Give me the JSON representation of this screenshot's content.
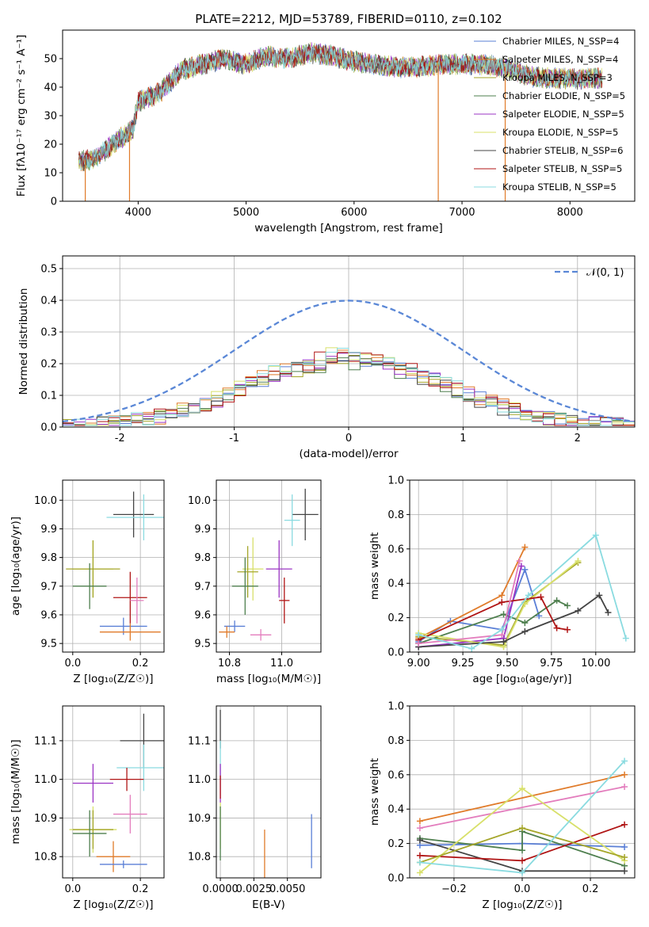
{
  "chart_data": [
    {
      "id": "spectrum",
      "type": "line",
      "title": "PLATE=2212, MJD=53789, FIBERID=0110, z=0.102",
      "xlabel": "wavelength [Angstrom, rest frame]",
      "ylabel": "Flux [fλ10⁻¹⁷ erg cm⁻² s⁻¹ A⁻¹]",
      "xlim": [
        3300,
        8600
      ],
      "ylim": [
        0,
        60
      ],
      "xticks": [
        4000,
        5000,
        6000,
        7000,
        8000
      ],
      "yticks": [
        0,
        10,
        20,
        30,
        40,
        50
      ],
      "legend_position": "top-right",
      "legend": [
        {
          "label": "Chabrier MILES, N_SSP=4",
          "color": "#5a7fd6"
        },
        {
          "label": "Salpeter MILES, N_SSP=4",
          "color": "#e07b2a"
        },
        {
          "label": "Kroupa MILES, N_SSP=3",
          "color": "#a5a62a"
        },
        {
          "label": "Chabrier ELODIE, N_SSP=5",
          "color": "#4e7f4e"
        },
        {
          "label": "Salpeter ELODIE, N_SSP=5",
          "color": "#9b34c4"
        },
        {
          "label": "Kroupa ELODIE, N_SSP=5",
          "color": "#d8e06a"
        },
        {
          "label": "Chabrier STELIB, N_SSP=6",
          "color": "#444444"
        },
        {
          "label": "Salpeter STELIB, N_SSP=5",
          "color": "#b01515"
        },
        {
          "label": "Kroupa STELIB, N_SSP=5",
          "color": "#8adbe0"
        }
      ],
      "series": [
        {
          "x": [
            3450,
            3600,
            3800,
            3950,
            4000,
            4200,
            4400,
            4600,
            4800,
            5000,
            5200,
            5400,
            5600,
            5800,
            6000,
            6200,
            6400,
            6600,
            6800,
            7000,
            7200,
            7400,
            7600,
            7800,
            8000,
            8200,
            8300
          ],
          "values": [
            14,
            15,
            21,
            25,
            35,
            38,
            46,
            48,
            50,
            48,
            51,
            50,
            52,
            51,
            49,
            48,
            47,
            47,
            48,
            48,
            48,
            47,
            44,
            43,
            43,
            43,
            43
          ]
        }
      ],
      "drop_lines_x": [
        3510,
        3920,
        6780,
        7400
      ]
    },
    {
      "id": "residuals",
      "type": "area",
      "xlabel": "(data-model)/error",
      "ylabel": "Normed distribution",
      "xlim": [
        -2.5,
        2.5
      ],
      "ylim": [
        0,
        0.54
      ],
      "xticks": [
        -2,
        -1,
        0,
        1,
        2
      ],
      "yticks": [
        0.0,
        0.1,
        0.2,
        0.3,
        0.4,
        0.5
      ],
      "legend_position": "top-right",
      "legend": [
        {
          "label": "𝒩(0, 1)",
          "color": "#5a87d6"
        }
      ],
      "bin_width": 0.1,
      "hist_colors": [
        "#5a7fd6",
        "#e07b2a",
        "#a5a62a",
        "#4e7f4e",
        "#9b34c4",
        "#d8e06a",
        "#444444",
        "#b01515",
        "#8adbe0"
      ],
      "amplitudes": [
        1.02,
        1.05,
        0.98,
        0.95,
        1.0,
        1.07,
        0.97,
        1.03,
        1.06
      ]
    },
    {
      "id": "age_vs_Z",
      "type": "scatter",
      "xlabel": "Z [log₁₀(Z/Z☉)]",
      "ylabel": "age  [log₁₀(age/yr)]",
      "xlim": [
        -0.03,
        0.27
      ],
      "ylim": [
        9.47,
        10.07
      ],
      "xticks": [
        "0.0",
        "0.2"
      ],
      "yticks": [
        "9.5",
        "9.6",
        "9.7",
        "9.8",
        "9.9",
        "10.0"
      ],
      "points": [
        {
          "x": 0.18,
          "y": 9.95,
          "xerr": 0.06,
          "yerr": 0.08,
          "color": "#444444"
        },
        {
          "x": 0.21,
          "y": 9.94,
          "xerr": 0.11,
          "yerr": 0.08,
          "color": "#8adbe0"
        },
        {
          "x": 0.06,
          "y": 9.76,
          "xerr": 0.06,
          "yerr": 0.1,
          "color": "#d8e06a"
        },
        {
          "x": 0.06,
          "y": 9.76,
          "xerr": 0.08,
          "yerr": 0.1,
          "color": "#a5a62a"
        },
        {
          "x": 0.05,
          "y": 9.7,
          "xerr": 0.05,
          "yerr": 0.08,
          "color": "#4e7f4e"
        },
        {
          "x": 0.17,
          "y": 9.66,
          "xerr": 0.05,
          "yerr": 0.09,
          "color": "#b01515"
        },
        {
          "x": 0.19,
          "y": 9.65,
          "xerr": 0.02,
          "yerr": 0.08,
          "color": "#e37dbd"
        },
        {
          "x": 0.15,
          "y": 9.56,
          "xerr": 0.07,
          "yerr": 0.03,
          "color": "#5a7fd6"
        },
        {
          "x": 0.17,
          "y": 9.54,
          "xerr": 0.09,
          "yerr": 0.03,
          "color": "#e07b2a"
        }
      ]
    },
    {
      "id": "age_vs_mass",
      "type": "scatter",
      "xlabel": "mass [log₁₀(M/M☉)]",
      "ylabel": "",
      "xlim": [
        10.75,
        11.15
      ],
      "ylim": [
        9.47,
        10.07
      ],
      "xticks": [
        "10.8",
        "11.0"
      ],
      "yticks": [
        "9.5",
        "9.6",
        "9.7",
        "9.8",
        "9.9",
        "10.0"
      ],
      "points": [
        {
          "x": 11.09,
          "y": 9.95,
          "xerr": 0.05,
          "yerr": 0.09,
          "color": "#444444"
        },
        {
          "x": 11.04,
          "y": 9.93,
          "xerr": 0.03,
          "yerr": 0.09,
          "color": "#8adbe0"
        },
        {
          "x": 10.89,
          "y": 9.76,
          "xerr": 0.04,
          "yerr": 0.11,
          "color": "#d8e06a"
        },
        {
          "x": 10.87,
          "y": 9.75,
          "xerr": 0.04,
          "yerr": 0.09,
          "color": "#a5a62a"
        },
        {
          "x": 10.86,
          "y": 9.7,
          "xerr": 0.05,
          "yerr": 0.1,
          "color": "#4e7f4e"
        },
        {
          "x": 10.99,
          "y": 9.76,
          "xerr": 0.05,
          "yerr": 0.1,
          "color": "#9b34c4"
        },
        {
          "x": 11.01,
          "y": 9.65,
          "xerr": 0.02,
          "yerr": 0.08,
          "color": "#b01515"
        },
        {
          "x": 10.92,
          "y": 9.53,
          "xerr": 0.04,
          "yerr": 0.02,
          "color": "#e37dbd"
        },
        {
          "x": 10.82,
          "y": 9.56,
          "xerr": 0.04,
          "yerr": 0.02,
          "color": "#5a7fd6"
        },
        {
          "x": 10.79,
          "y": 9.54,
          "xerr": 0.03,
          "yerr": 0.02,
          "color": "#e07b2a"
        }
      ]
    },
    {
      "id": "massweight_vs_age",
      "type": "line",
      "xlabel": "age  [log₁₀(age/yr)]",
      "ylabel": "mass weight",
      "xlim": [
        8.95,
        10.22
      ],
      "ylim": [
        0,
        1.0
      ],
      "xticks": [
        "9.00",
        "9.25",
        "9.50",
        "9.75",
        "10.00"
      ],
      "yticks": [
        "0.0",
        "0.2",
        "0.4",
        "0.6",
        "0.8",
        "1.0"
      ],
      "series": [
        {
          "color": "#5a7fd6",
          "x": [
            9.0,
            9.18,
            9.47,
            9.6,
            9.68
          ],
          "values": [
            0.06,
            0.18,
            0.13,
            0.48,
            0.21
          ]
        },
        {
          "color": "#e07b2a",
          "x": [
            9.0,
            9.47,
            9.6
          ],
          "values": [
            0.08,
            0.33,
            0.61
          ]
        },
        {
          "color": "#a5a62a",
          "x": [
            9.0,
            9.48,
            9.6,
            9.9
          ],
          "values": [
            0.09,
            0.04,
            0.29,
            0.52
          ]
        },
        {
          "color": "#4e7f4e",
          "x": [
            9.0,
            9.48,
            9.6,
            9.78,
            9.84
          ],
          "values": [
            0.05,
            0.22,
            0.17,
            0.3,
            0.27
          ]
        },
        {
          "color": "#9b34c4",
          "x": [
            9.0,
            9.48,
            9.58
          ],
          "values": [
            0.03,
            0.08,
            0.5
          ]
        },
        {
          "color": "#d8e06a",
          "x": [
            9.0,
            9.48,
            9.6,
            9.9
          ],
          "values": [
            0.11,
            0.03,
            0.28,
            0.53
          ]
        },
        {
          "color": "#444444",
          "x": [
            9.0,
            9.48,
            9.6,
            9.9,
            10.02,
            10.07
          ],
          "values": [
            0.03,
            0.06,
            0.12,
            0.24,
            0.33,
            0.23
          ]
        },
        {
          "color": "#b01515",
          "x": [
            9.0,
            9.47,
            9.69,
            9.78,
            9.84
          ],
          "values": [
            0.07,
            0.29,
            0.32,
            0.14,
            0.13
          ]
        },
        {
          "color": "#e37dbd",
          "x": [
            9.0,
            9.47,
            9.57
          ],
          "values": [
            0.05,
            0.1,
            0.53
          ]
        },
        {
          "color": "#8adbe0",
          "x": [
            9.0,
            9.3,
            9.47,
            9.62,
            10.0,
            10.17
          ],
          "values": [
            0.1,
            0.02,
            0.13,
            0.33,
            0.68,
            0.08
          ]
        }
      ]
    },
    {
      "id": "mass_vs_Z",
      "type": "scatter",
      "xlabel": "Z [log₁₀(Z/Z☉)]",
      "ylabel": "mass [log₁₀(M/M☉)]",
      "xlim": [
        -0.03,
        0.27
      ],
      "ylim": [
        10.745,
        11.19
      ],
      "xticks": [
        "0.0",
        "0.2"
      ],
      "yticks": [
        "10.8",
        "10.9",
        "11.0",
        "11.1"
      ],
      "points": [
        {
          "x": 0.21,
          "y": 11.1,
          "xerr": 0.07,
          "yerr": 0.07,
          "color": "#444444"
        },
        {
          "x": 0.21,
          "y": 11.03,
          "xerr": 0.08,
          "yerr": 0.06,
          "color": "#8adbe0"
        },
        {
          "x": 0.06,
          "y": 10.99,
          "xerr": 0.06,
          "yerr": 0.05,
          "color": "#9b34c4"
        },
        {
          "x": 0.16,
          "y": 11.0,
          "xerr": 0.05,
          "yerr": 0.03,
          "color": "#b01515"
        },
        {
          "x": 0.06,
          "y": 10.87,
          "xerr": 0.07,
          "yerr": 0.06,
          "color": "#d8e06a"
        },
        {
          "x": 0.06,
          "y": 10.87,
          "xerr": 0.06,
          "yerr": 0.05,
          "color": "#a5a62a"
        },
        {
          "x": 0.17,
          "y": 10.91,
          "xerr": 0.05,
          "yerr": 0.05,
          "color": "#e37dbd"
        },
        {
          "x": 0.05,
          "y": 10.86,
          "xerr": 0.05,
          "yerr": 0.06,
          "color": "#4e7f4e"
        },
        {
          "x": 0.12,
          "y": 10.8,
          "xerr": 0.05,
          "yerr": 0.04,
          "color": "#e07b2a"
        },
        {
          "x": 0.15,
          "y": 10.78,
          "xerr": 0.07,
          "yerr": 0.01,
          "color": "#5a7fd6"
        }
      ]
    },
    {
      "id": "mass_vs_EBV",
      "type": "scatter",
      "xlabel": "E(B-V)",
      "ylabel": "",
      "xlim": [
        -0.0003,
        0.0075
      ],
      "ylim": [
        10.745,
        11.19
      ],
      "xticks": [
        "0.0000",
        "0.0025",
        "0.0050"
      ],
      "yticks": [
        "10.8",
        "10.9",
        "11.0",
        "11.1"
      ],
      "points": [
        {
          "x": 0.0,
          "y": 11.13,
          "xerr": 0.0,
          "yerr": 0.05,
          "color": "#444444"
        },
        {
          "x": 0.0,
          "y": 11.05,
          "xerr": 0.0,
          "yerr": 0.05,
          "color": "#8adbe0"
        },
        {
          "x": 0.0,
          "y": 10.99,
          "xerr": 0.0,
          "yerr": 0.05,
          "color": "#9b34c4"
        },
        {
          "x": 0.0,
          "y": 10.98,
          "xerr": 0.0,
          "yerr": 0.03,
          "color": "#b01515"
        },
        {
          "x": 0.0,
          "y": 10.88,
          "xerr": 0.0,
          "yerr": 0.06,
          "color": "#d8e06a"
        },
        {
          "x": 0.0,
          "y": 10.86,
          "xerr": 0.0,
          "yerr": 0.07,
          "color": "#4e7f4e"
        },
        {
          "x": 0.0033,
          "y": 10.8,
          "xerr": 0.0,
          "yerr": 0.07,
          "color": "#e07b2a"
        },
        {
          "x": 0.0068,
          "y": 10.84,
          "xerr": 0.0,
          "yerr": 0.07,
          "color": "#5a7fd6"
        }
      ]
    },
    {
      "id": "massweight_vs_Z",
      "type": "line",
      "xlabel": "Z [log₁₀(Z/Z☉)]",
      "ylabel": "mass weight",
      "xlim": [
        -0.33,
        0.33
      ],
      "ylim": [
        0,
        1.0
      ],
      "xticks": [
        "−0.2",
        "0.0",
        "0.2"
      ],
      "yticks": [
        "0.0",
        "0.2",
        "0.4",
        "0.6",
        "0.8",
        "1.0"
      ],
      "series": [
        {
          "color": "#e07b2a",
          "x": [
            -0.3,
            0.3
          ],
          "values": [
            0.33,
            0.6
          ]
        },
        {
          "color": "#e37dbd",
          "x": [
            -0.3,
            0.3
          ],
          "values": [
            0.29,
            0.53
          ]
        },
        {
          "color": "#5a7fd6",
          "x": [
            -0.3,
            0.0,
            0.3
          ],
          "values": [
            0.19,
            0.2,
            0.18
          ]
        },
        {
          "color": "#4e7f4e",
          "x": [
            -0.3,
            0.0,
            0.0,
            0.3
          ],
          "values": [
            0.23,
            0.16,
            0.27,
            0.07
          ]
        },
        {
          "color": "#444444",
          "x": [
            -0.3,
            0.0,
            0.3
          ],
          "values": [
            0.22,
            0.04,
            0.04
          ]
        },
        {
          "color": "#b01515",
          "x": [
            -0.3,
            0.0,
            0.3
          ],
          "values": [
            0.13,
            0.1,
            0.31
          ]
        },
        {
          "color": "#d8e06a",
          "x": [
            -0.3,
            0.0,
            0.3
          ],
          "values": [
            0.03,
            0.52,
            0.1
          ]
        },
        {
          "color": "#a5a62a",
          "x": [
            -0.3,
            0.0,
            0.3
          ],
          "values": [
            0.09,
            0.29,
            0.12
          ]
        },
        {
          "color": "#8adbe0",
          "x": [
            -0.3,
            0.0,
            0.3
          ],
          "values": [
            0.09,
            0.03,
            0.68
          ]
        }
      ]
    }
  ]
}
